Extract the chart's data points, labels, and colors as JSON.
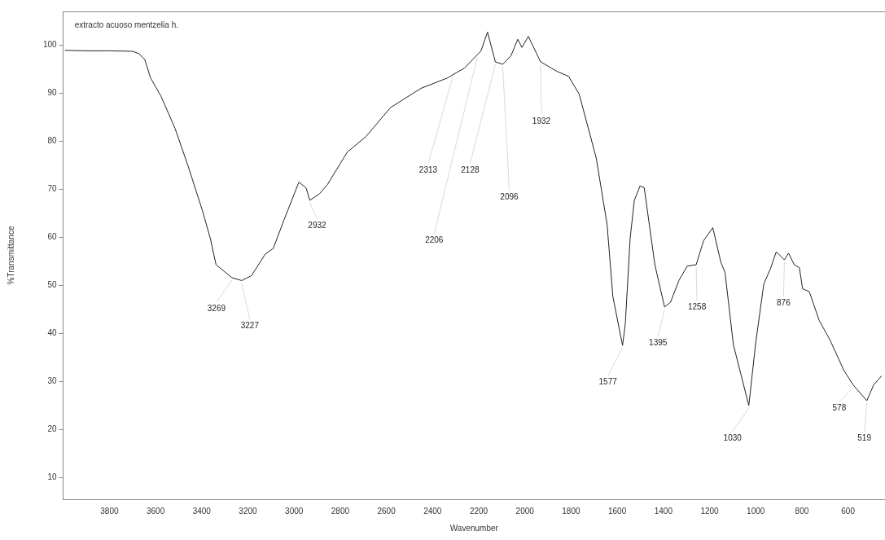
{
  "chart_data": {
    "type": "line",
    "title": "extracto acuoso mentzelia h.",
    "xlabel": "Wavenumber",
    "ylabel": "%Transmittance",
    "xlim": [
      4000,
      440
    ],
    "ylim": [
      5.5,
      107
    ],
    "xticks": [
      3800,
      3600,
      3400,
      3200,
      3000,
      2800,
      2600,
      2400,
      2200,
      2000,
      1800,
      1600,
      1400,
      1200,
      1000,
      800,
      600
    ],
    "yticks": [
      10,
      20,
      30,
      40,
      50,
      60,
      70,
      80,
      90,
      100
    ],
    "grid": false,
    "legend": false,
    "marker": "none",
    "line_style": "solid",
    "series": [
      {
        "color": "#222222",
        "x": [
          3993,
          3900,
          3800,
          3700,
          3672,
          3647,
          3622,
          3576,
          3516,
          3459,
          3398,
          3363,
          3338,
          3269,
          3227,
          3185,
          3125,
          3090,
          3043,
          2979,
          2948,
          2932,
          2891,
          2855,
          2770,
          2688,
          2582,
          2450,
          2333,
          2313,
          2262,
          2206,
          2191,
          2162,
          2128,
          2096,
          2060,
          2031,
          2013,
          1985,
          1932,
          1860,
          1811,
          1765,
          1691,
          1644,
          1619,
          1577,
          1565,
          1544,
          1526,
          1501,
          1483,
          1437,
          1395,
          1369,
          1333,
          1297,
          1258,
          1226,
          1186,
          1151,
          1133,
          1097,
          1030,
          1001,
          965,
          936,
          911,
          876,
          858,
          833,
          811,
          797,
          768,
          725,
          679,
          618,
          578,
          519,
          489,
          454
        ],
        "values": [
          98.9,
          98.8,
          98.8,
          98.7,
          98.2,
          97,
          93.2,
          89.3,
          82.7,
          74.8,
          65.7,
          59.8,
          54.3,
          51.6,
          51,
          52,
          56.5,
          57.7,
          63.7,
          71.5,
          70.3,
          67.7,
          69,
          71,
          77.7,
          81,
          87,
          91,
          93.2,
          93.8,
          95.2,
          98,
          98.7,
          102.7,
          96.5,
          96,
          97.8,
          101.2,
          99.5,
          101.8,
          96.5,
          94.5,
          93.5,
          89.8,
          76.5,
          62.7,
          47.7,
          37.5,
          42,
          59.8,
          67.7,
          70.7,
          70.3,
          54.3,
          45.5,
          46.5,
          51,
          54,
          54.3,
          59.3,
          62,
          54.8,
          52.7,
          37.7,
          25,
          37.7,
          50.3,
          53.5,
          57,
          55.3,
          56.7,
          54.3,
          53.7,
          49.3,
          48.7,
          42.7,
          38.7,
          32.3,
          29.3,
          26,
          29.3,
          31.2
        ]
      }
    ],
    "annotations": [
      {
        "text": "3269",
        "x": 3269,
        "y": 51.6
      },
      {
        "text": "3227",
        "x": 3227,
        "y": 51
      },
      {
        "text": "2932",
        "x": 2932,
        "y": 67.7
      },
      {
        "text": "2313",
        "x": 2313,
        "y": 93.8
      },
      {
        "text": "2206",
        "x": 2206,
        "y": 98
      },
      {
        "text": "2128",
        "x": 2128,
        "y": 96.5
      },
      {
        "text": "2096",
        "x": 2096,
        "y": 96
      },
      {
        "text": "1932",
        "x": 1932,
        "y": 96.5
      },
      {
        "text": "1577",
        "x": 1577,
        "y": 37.5
      },
      {
        "text": "1395",
        "x": 1395,
        "y": 45.5
      },
      {
        "text": "1258",
        "x": 1258,
        "y": 54.3
      },
      {
        "text": "876",
        "x": 876,
        "y": 55.3
      },
      {
        "text": "1030",
        "x": 1030,
        "y": 25
      },
      {
        "text": "578",
        "x": 578,
        "y": 29.3
      },
      {
        "text": "519",
        "x": 519,
        "y": 26
      }
    ]
  }
}
